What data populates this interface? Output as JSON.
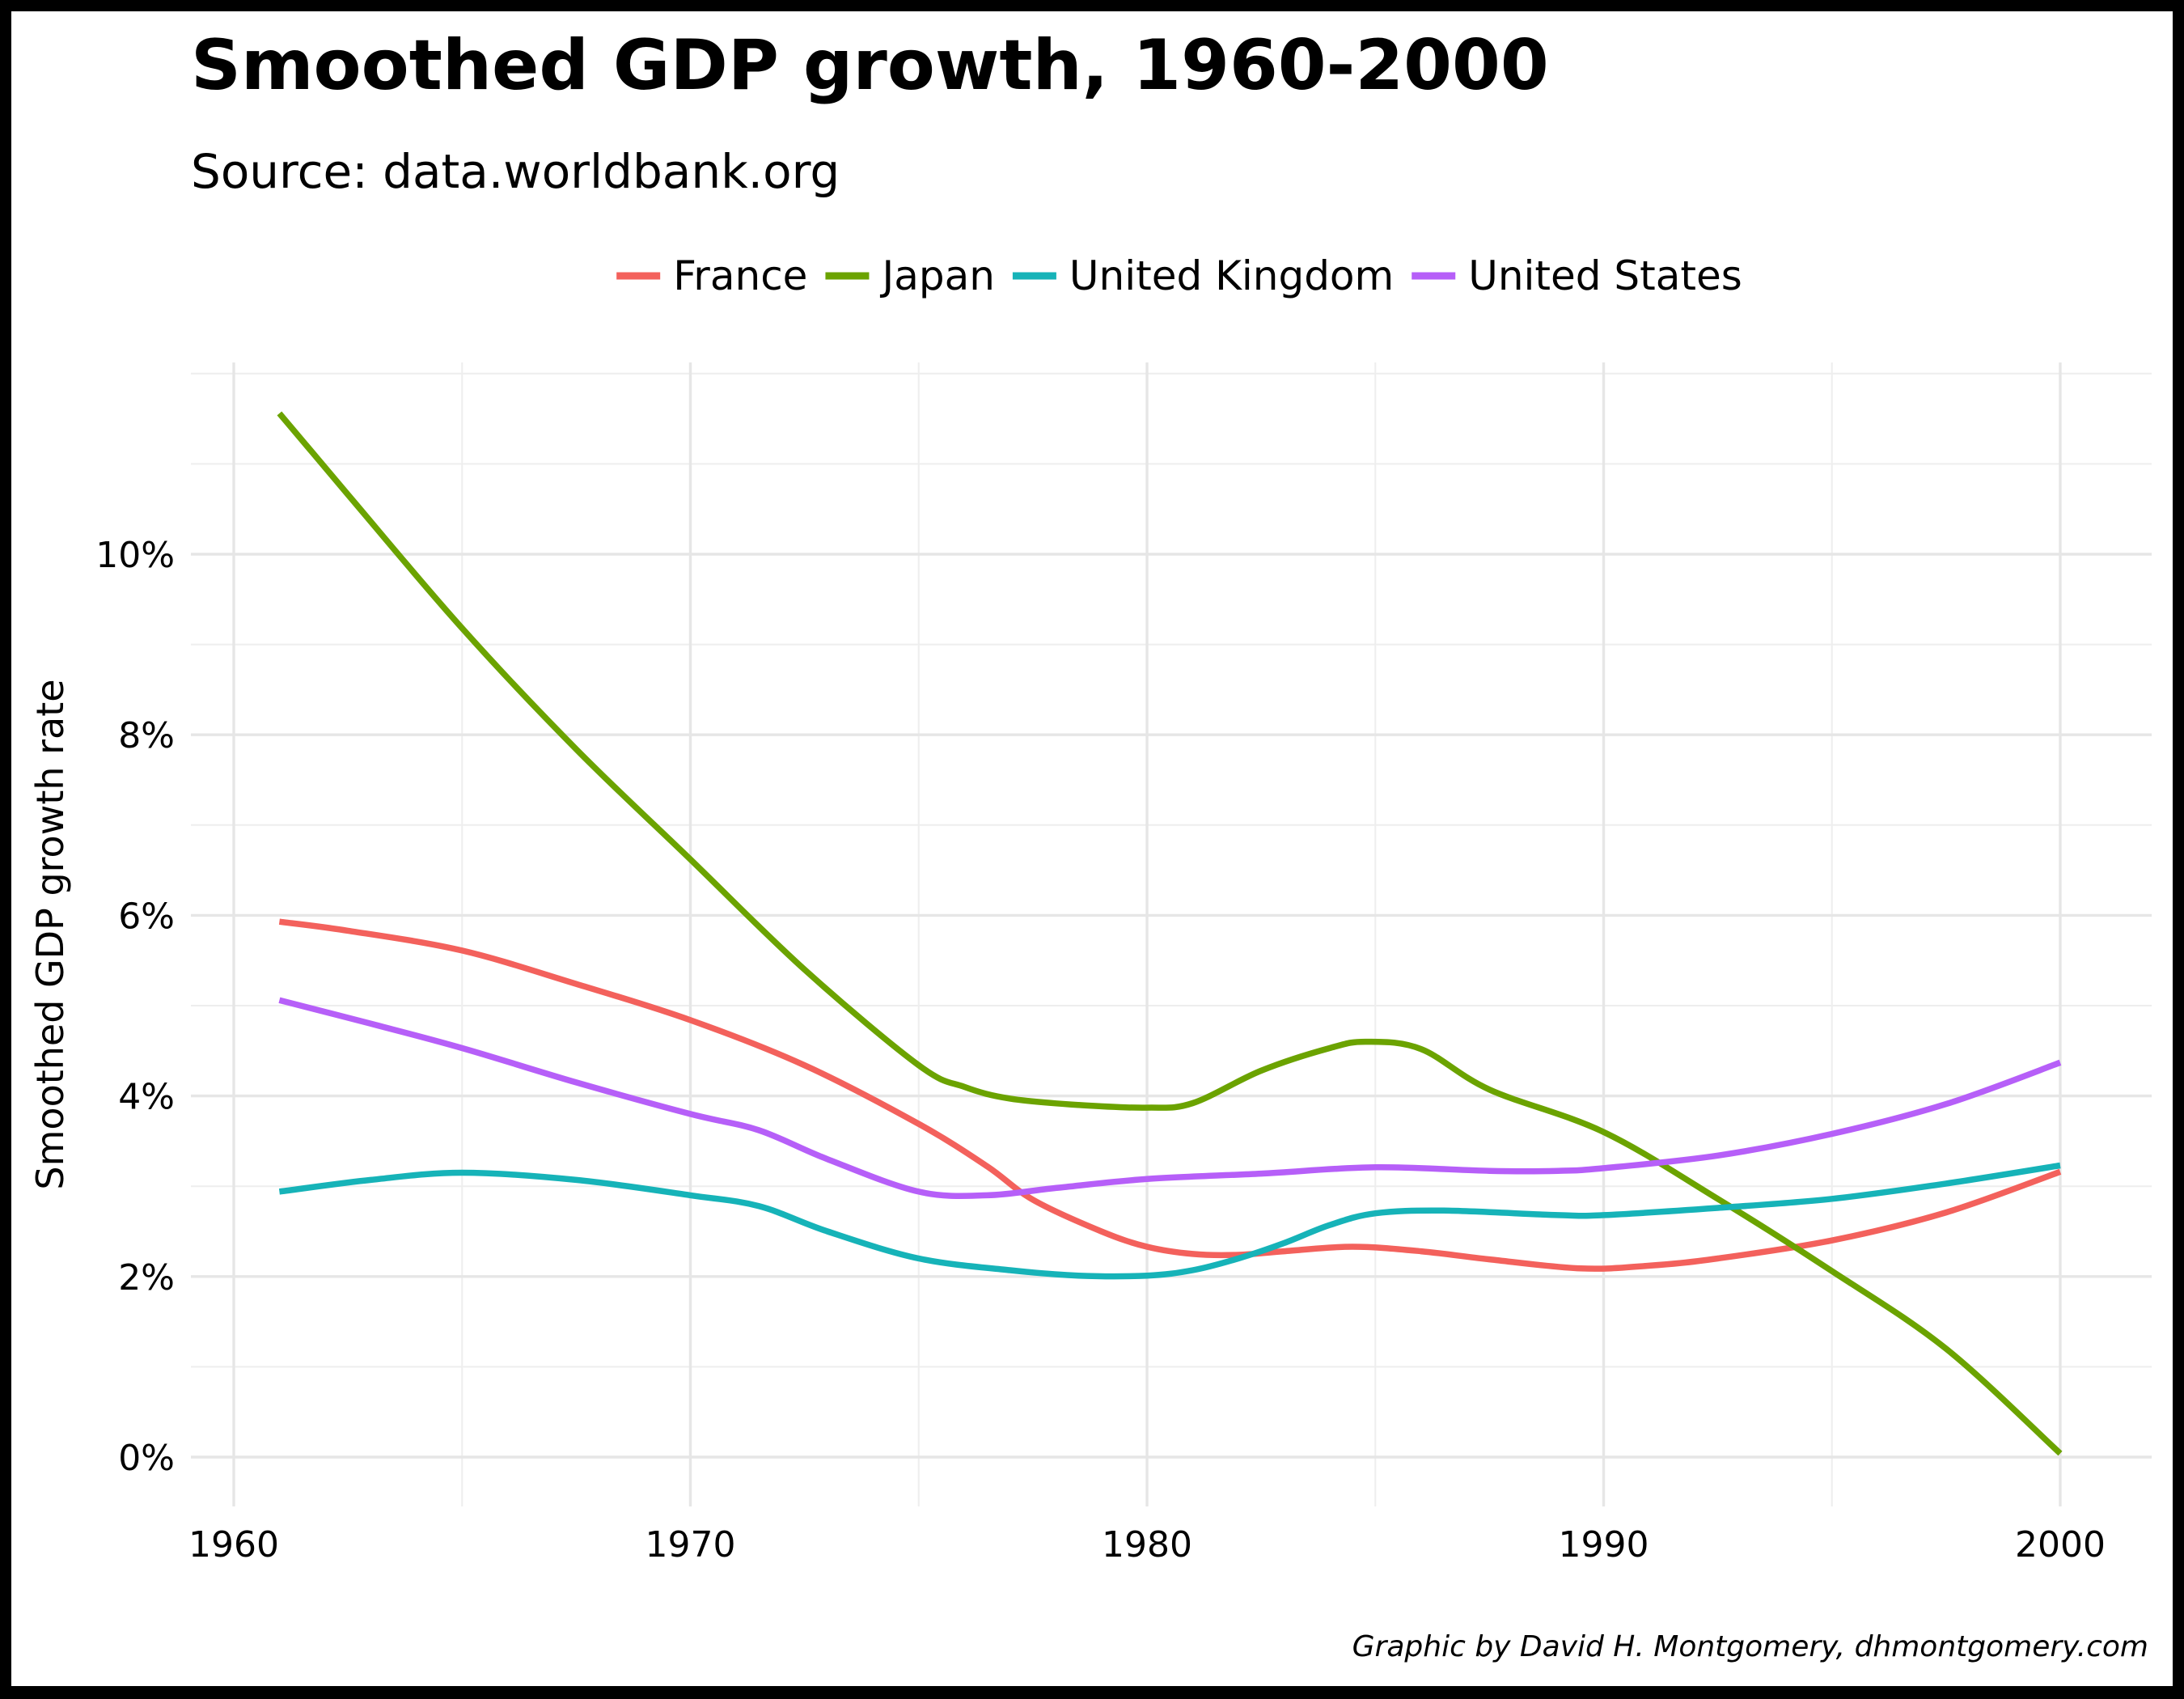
{
  "chart_data": {
    "type": "line",
    "title": "Smoothed GDP growth, 1960-2000",
    "subtitle": "Source: data.worldbank.org",
    "xlabel": "",
    "ylabel": "Smoothed GDP growth rate",
    "caption": "Graphic by David H. Montgomery, dhmontgomery.com",
    "xlim": [
      1959,
      2002
    ],
    "ylim": [
      -0.4,
      12.1
    ],
    "x_ticks": [
      1960,
      1970,
      1980,
      1990,
      2000
    ],
    "x_tick_labels": [
      "1960",
      "1970",
      "1980",
      "1990",
      "2000"
    ],
    "x_minor_ticks": [
      1965,
      1975,
      1985,
      1995
    ],
    "y_ticks": [
      0,
      2,
      4,
      6,
      8,
      10
    ],
    "y_tick_labels": [
      "0%",
      "2%",
      "4%",
      "6%",
      "8%",
      "10%"
    ],
    "y_minor_ticks": [
      1,
      3,
      5,
      7,
      9,
      11,
      12
    ],
    "grid": true,
    "legend_position": "top",
    "series": [
      {
        "name": "France",
        "color": "#F3615C",
        "x": [
          1961,
          1962.5,
          1965,
          1967.5,
          1970,
          1972.5,
          1975,
          1976.5,
          1977.5,
          1979,
          1980,
          1981,
          1982,
          1983,
          1984.5,
          1986,
          1987.5,
          1989.5,
          1991,
          1992.5,
          1995,
          1997.5,
          2000
        ],
        "y": [
          5.93,
          5.83,
          5.61,
          5.24,
          4.84,
          4.34,
          3.69,
          3.22,
          2.85,
          2.5,
          2.33,
          2.25,
          2.24,
          2.28,
          2.33,
          2.28,
          2.19,
          2.09,
          2.12,
          2.2,
          2.4,
          2.71,
          3.16
        ]
      },
      {
        "name": "Japan",
        "color": "#6BA300",
        "x": [
          1961,
          1962.5,
          1965,
          1967.5,
          1970,
          1972.5,
          1975,
          1976,
          1977,
          1978.5,
          1980,
          1981,
          1982.5,
          1984,
          1984.8,
          1986,
          1987.5,
          1990,
          1992.5,
          1995,
          1997.5,
          2000
        ],
        "y": [
          11.56,
          10.66,
          9.18,
          7.84,
          6.62,
          5.4,
          4.34,
          4.1,
          3.97,
          3.9,
          3.87,
          3.92,
          4.28,
          4.53,
          4.6,
          4.52,
          4.07,
          3.6,
          2.86,
          2.06,
          1.2,
          0.04
        ]
      },
      {
        "name": "United Kingdom",
        "color": "#16B3B8",
        "x": [
          1961,
          1963,
          1965,
          1967.5,
          1970,
          1971.5,
          1973,
          1975,
          1977,
          1978.5,
          1980,
          1981,
          1982,
          1983,
          1984,
          1985,
          1986.5,
          1989,
          1990,
          1992.5,
          1995,
          1997.5,
          2000
        ],
        "y": [
          2.94,
          3.07,
          3.15,
          3.07,
          2.9,
          2.78,
          2.5,
          2.2,
          2.07,
          2.01,
          2.01,
          2.07,
          2.2,
          2.37,
          2.57,
          2.7,
          2.73,
          2.68,
          2.68,
          2.76,
          2.86,
          3.03,
          3.23
        ]
      },
      {
        "name": "United States",
        "color": "#B65FF8",
        "x": [
          1961,
          1963,
          1965,
          1967.5,
          1970,
          1971.5,
          1973,
          1975,
          1976.5,
          1978,
          1980,
          1982.5,
          1985,
          1987.5,
          1989,
          1990,
          1992.5,
          1995,
          1997.5,
          2000
        ],
        "y": [
          5.06,
          4.8,
          4.53,
          4.15,
          3.8,
          3.62,
          3.3,
          2.94,
          2.9,
          2.98,
          3.08,
          3.14,
          3.21,
          3.17,
          3.17,
          3.2,
          3.34,
          3.58,
          3.91,
          4.37
        ]
      }
    ]
  }
}
